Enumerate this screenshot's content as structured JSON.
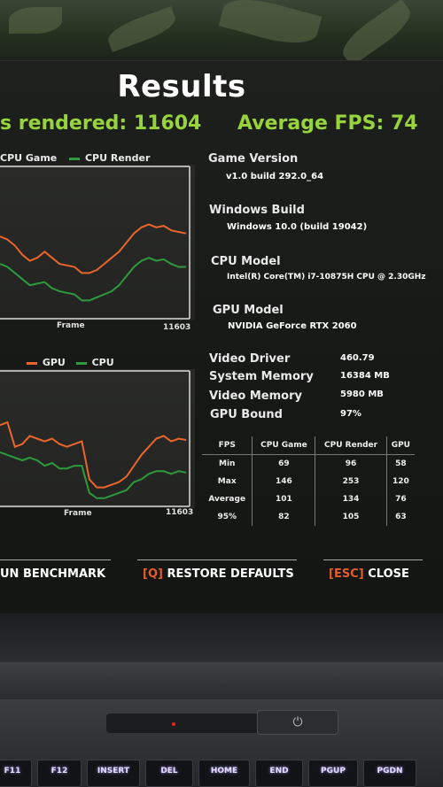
{
  "results_title": "Results",
  "frames_rendered_text": "s rendered: 11604",
  "average_fps_text": "Average FPS: 74",
  "chart_data": [
    {
      "type": "line",
      "legend": [
        "CPU Game",
        "CPU Render"
      ],
      "xlabel": "Frame",
      "x_end_label": "11603",
      "xlim": [
        0,
        11603
      ],
      "ylim": [
        0,
        100
      ],
      "colors": {
        "CPU Game": "#e8652b",
        "CPU Render": "#2e9a3e"
      },
      "series": [
        {
          "name": "CPU Game",
          "values": [
            54,
            52,
            48,
            42,
            38,
            40,
            44,
            40,
            36,
            35,
            34,
            30,
            30,
            32,
            36,
            40,
            44,
            50,
            56,
            60,
            62,
            60,
            61,
            58,
            57,
            56
          ]
        },
        {
          "name": "CPU Render",
          "values": [
            36,
            34,
            30,
            26,
            22,
            23,
            24,
            20,
            18,
            17,
            16,
            12,
            12,
            14,
            16,
            18,
            22,
            28,
            34,
            38,
            40,
            38,
            39,
            36,
            34,
            34
          ]
        }
      ]
    },
    {
      "type": "line",
      "legend": [
        "GPU",
        "CPU"
      ],
      "xlabel": "Frame",
      "x_end_label": "11603",
      "xlim": [
        0,
        11603
      ],
      "ylim": [
        0,
        100
      ],
      "colors": {
        "GPU": "#e8652b",
        "CPU": "#2e9a3e"
      },
      "series": [
        {
          "name": "GPU",
          "values": [
            60,
            62,
            44,
            46,
            52,
            50,
            48,
            50,
            46,
            44,
            46,
            48,
            20,
            14,
            14,
            16,
            18,
            22,
            30,
            38,
            44,
            50,
            52,
            48,
            50,
            49
          ]
        },
        {
          "name": "CPU",
          "values": [
            40,
            38,
            36,
            34,
            36,
            34,
            30,
            32,
            28,
            28,
            30,
            30,
            10,
            6,
            6,
            8,
            10,
            12,
            18,
            20,
            24,
            26,
            26,
            24,
            26,
            25
          ]
        }
      ]
    }
  ],
  "info": {
    "game_version_label": "Game Version",
    "game_version_value": "v1.0 build 292.0_64",
    "windows_build_label": "Windows Build",
    "windows_build_value": "Windows 10.0 (build 19042)",
    "cpu_model_label": "CPU Model",
    "cpu_model_value": "Intel(R) Core(TM) i7-10875H CPU @ 2.30GHz",
    "gpu_model_label": "GPU Model",
    "gpu_model_value": "NVIDIA GeForce RTX 2060",
    "video_driver_label": "Video Driver",
    "video_driver_value": "460.79",
    "system_memory_label": "System Memory",
    "system_memory_value": "16384 MB",
    "video_memory_label": "Video Memory",
    "video_memory_value": "5980 MB",
    "gpu_bound_label": "GPU Bound",
    "gpu_bound_value": "97%"
  },
  "stats": {
    "headers": [
      "FPS",
      "CPU Game",
      "CPU Render",
      "GPU"
    ],
    "rows": [
      [
        "Min",
        "69",
        "96",
        "58"
      ],
      [
        "Max",
        "146",
        "253",
        "120"
      ],
      [
        "Average",
        "101",
        "134",
        "76"
      ],
      [
        "95%",
        "82",
        "105",
        "63"
      ]
    ]
  },
  "buttons": {
    "run_benchmark": "UN BENCHMARK",
    "restore_key": "[Q]",
    "restore_label": "RESTORE DEFAULTS",
    "close_key": "[ESC]",
    "close_label": "CLOSE"
  },
  "keyboard": {
    "keys": [
      "F11",
      "F12",
      "INSERT",
      "DEL",
      "HOME",
      "END",
      "PGUP",
      "PGDN"
    ]
  },
  "power_icon": "power-icon"
}
